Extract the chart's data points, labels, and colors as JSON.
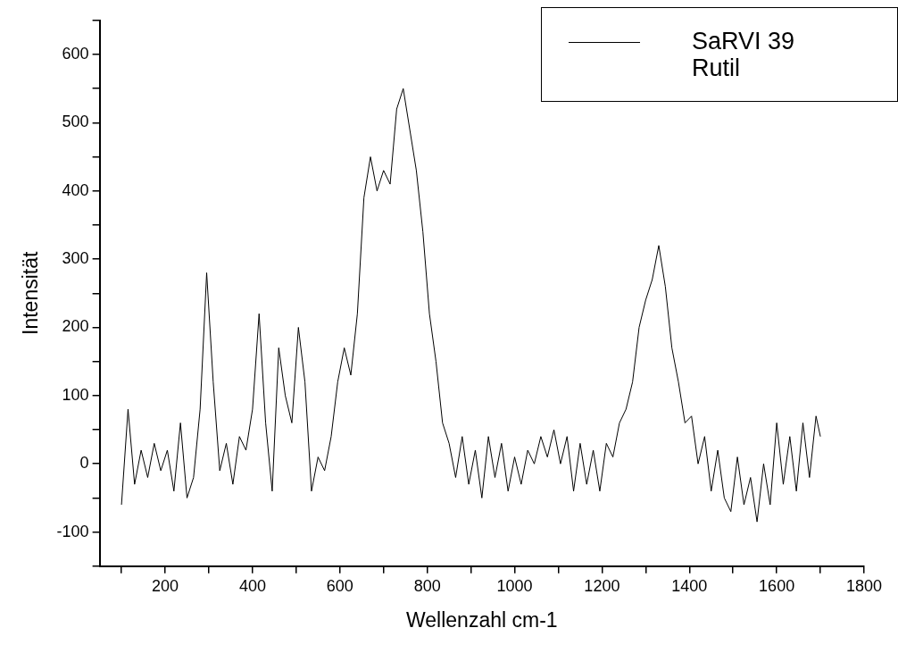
{
  "chart_data": {
    "type": "line",
    "xlabel": "Wellenzahl cm-1",
    "ylabel": "Intensität",
    "legend": "top right",
    "marker": "none",
    "line_style": "solid",
    "xlim": [
      50,
      1800
    ],
    "xticks": [
      {
        "value": 100,
        "label": null
      },
      200,
      {
        "value": 300,
        "label": null
      },
      400,
      {
        "value": 500,
        "label": null
      },
      600,
      {
        "value": 700,
        "label": null
      },
      800,
      {
        "value": 900,
        "label": null
      },
      1000,
      {
        "value": 1100,
        "label": null
      },
      1200,
      {
        "value": 1300,
        "label": null
      },
      1400,
      {
        "value": 1500,
        "label": null
      },
      1600,
      {
        "value": 1700,
        "label": null
      },
      1800
    ],
    "ylim": [
      -150,
      650
    ],
    "yticks": [
      {
        "value": -150,
        "label": null
      },
      -100,
      {
        "value": -50,
        "label": null
      },
      0,
      {
        "value": 50,
        "label": null
      },
      100,
      {
        "value": 150,
        "label": null
      },
      200,
      {
        "value": 250,
        "label": null
      },
      300,
      {
        "value": 350,
        "label": null
      },
      400,
      {
        "value": 450,
        "label": null
      },
      500,
      {
        "value": 550,
        "label": null
      },
      600,
      {
        "value": 650,
        "label": null
      }
    ],
    "x": [
      100,
      115,
      130,
      145,
      160,
      175,
      190,
      205,
      220,
      235,
      250,
      265,
      280,
      295,
      310,
      325,
      340,
      355,
      370,
      385,
      400,
      415,
      430,
      445,
      460,
      475,
      490,
      505,
      520,
      535,
      550,
      565,
      580,
      595,
      610,
      625,
      640,
      655,
      670,
      685,
      700,
      715,
      730,
      745,
      760,
      775,
      790,
      805,
      820,
      835,
      850,
      865,
      880,
      895,
      910,
      925,
      940,
      955,
      970,
      985,
      1000,
      1015,
      1030,
      1045,
      1060,
      1075,
      1090,
      1105,
      1120,
      1135,
      1150,
      1165,
      1180,
      1195,
      1210,
      1225,
      1240,
      1255,
      1270,
      1285,
      1300,
      1315,
      1330,
      1345,
      1360,
      1375,
      1390,
      1405,
      1420,
      1435,
      1450,
      1465,
      1480,
      1495,
      1510,
      1525,
      1540,
      1555,
      1570,
      1585,
      1600,
      1615,
      1630,
      1645,
      1660,
      1675,
      1690,
      1700
    ],
    "series": [
      {
        "name": "SaRVI 39\nRutil",
        "color": "#000000",
        "values": [
          -60,
          80,
          -30,
          20,
          -20,
          30,
          -10,
          20,
          -40,
          60,
          -50,
          -20,
          80,
          280,
          120,
          -10,
          30,
          -30,
          40,
          20,
          80,
          220,
          60,
          -40,
          170,
          100,
          60,
          200,
          120,
          -40,
          10,
          -10,
          40,
          120,
          170,
          130,
          220,
          390,
          450,
          400,
          430,
          410,
          520,
          550,
          490,
          430,
          340,
          220,
          150,
          60,
          30,
          -20,
          40,
          -30,
          20,
          -50,
          40,
          -20,
          30,
          -40,
          10,
          -30,
          20,
          0,
          40,
          10,
          50,
          0,
          40,
          -40,
          30,
          -30,
          20,
          -40,
          30,
          10,
          60,
          80,
          120,
          200,
          240,
          270,
          320,
          260,
          170,
          120,
          60,
          70,
          0,
          40,
          -40,
          20,
          -50,
          -70,
          10,
          -60,
          -20,
          -85,
          0,
          -60,
          60,
          -30,
          40,
          -40,
          60,
          -20,
          70,
          40
        ]
      }
    ]
  }
}
